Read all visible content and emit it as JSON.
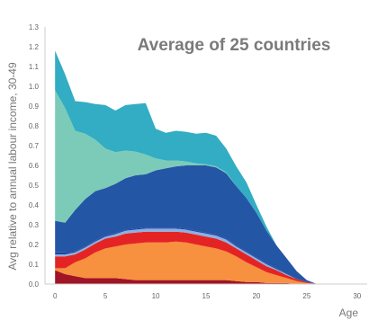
{
  "chart_data": {
    "type": "area",
    "stacked": true,
    "title": "Average of 25 countries",
    "xlabel": "Age",
    "ylabel": "Avg relative to annual labour income, 30-49",
    "xlim": [
      -1,
      31
    ],
    "ylim": [
      0,
      1.3
    ],
    "xticks": [
      0,
      5,
      10,
      15,
      20,
      25,
      30
    ],
    "yticks": [
      0.0,
      0.1,
      0.2,
      0.3,
      0.4,
      0.5,
      0.6,
      0.7,
      0.8,
      0.9,
      1.0,
      1.1,
      1.2,
      1.3
    ],
    "grid": false,
    "x": [
      0,
      1,
      2,
      3,
      4,
      5,
      6,
      7,
      8,
      9,
      10,
      11,
      12,
      13,
      14,
      15,
      16,
      17,
      18,
      19,
      20,
      21,
      22,
      23,
      24,
      25,
      26
    ],
    "series": [
      {
        "color": "#a01425",
        "values": [
          0.07,
          0.05,
          0.04,
          0.03,
          0.03,
          0.03,
          0.03,
          0.025,
          0.02,
          0.02,
          0.02,
          0.02,
          0.02,
          0.02,
          0.02,
          0.02,
          0.02,
          0.02,
          0.015,
          0.01,
          0.01,
          0.005,
          0.005,
          0.005,
          0.0,
          0.0,
          0.0
        ]
      },
      {
        "color": "#f7903f",
        "values": [
          0.01,
          0.03,
          0.07,
          0.1,
          0.13,
          0.15,
          0.16,
          0.175,
          0.185,
          0.19,
          0.19,
          0.19,
          0.195,
          0.19,
          0.18,
          0.17,
          0.16,
          0.145,
          0.125,
          0.1,
          0.075,
          0.055,
          0.04,
          0.025,
          0.015,
          0.005,
          0.0
        ]
      },
      {
        "color": "#e42424",
        "values": [
          0.06,
          0.06,
          0.04,
          0.045,
          0.045,
          0.05,
          0.05,
          0.055,
          0.055,
          0.055,
          0.055,
          0.055,
          0.05,
          0.05,
          0.05,
          0.05,
          0.05,
          0.045,
          0.04,
          0.04,
          0.035,
          0.03,
          0.025,
          0.015,
          0.01,
          0.005,
          0.0
        ]
      },
      {
        "color": "#8ab2e2",
        "values": [
          0.01,
          0.01,
          0.01,
          0.01,
          0.01,
          0.01,
          0.012,
          0.015,
          0.015,
          0.015,
          0.015,
          0.015,
          0.015,
          0.015,
          0.015,
          0.015,
          0.015,
          0.015,
          0.01,
          0.01,
          0.01,
          0.01,
          0.005,
          0.005,
          0.0,
          0.0,
          0.0
        ]
      },
      {
        "color": "#223fa2",
        "values": [
          0.01,
          0.01,
          0.005,
          0.005,
          0.005,
          0.005,
          0.005,
          0.005,
          0.005,
          0.005,
          0.005,
          0.005,
          0.005,
          0.005,
          0.005,
          0.005,
          0.005,
          0.005,
          0.005,
          0.005,
          0.005,
          0.005,
          0.005,
          0.0,
          0.0,
          0.0,
          0.0
        ]
      },
      {
        "color": "#2456a6",
        "values": [
          0.16,
          0.15,
          0.21,
          0.24,
          0.25,
          0.24,
          0.25,
          0.26,
          0.27,
          0.27,
          0.29,
          0.3,
          0.31,
          0.32,
          0.33,
          0.34,
          0.34,
          0.33,
          0.3,
          0.27,
          0.225,
          0.165,
          0.115,
          0.08,
          0.04,
          0.01,
          0.0
        ]
      },
      {
        "color": "#7ccbb8",
        "values": [
          0.66,
          0.58,
          0.4,
          0.33,
          0.26,
          0.2,
          0.16,
          0.14,
          0.12,
          0.1,
          0.06,
          0.04,
          0.03,
          0.02,
          0.01,
          0.005,
          0.005,
          0.005,
          0.0,
          0.0,
          0.0,
          0.0,
          0.0,
          0.0,
          0.0,
          0.0,
          0.0
        ]
      },
      {
        "color": "#32adc3",
        "values": [
          0.2,
          0.17,
          0.15,
          0.16,
          0.18,
          0.22,
          0.21,
          0.23,
          0.24,
          0.26,
          0.15,
          0.14,
          0.15,
          0.15,
          0.15,
          0.16,
          0.155,
          0.12,
          0.1,
          0.08,
          0.04,
          0.02,
          0.0,
          0.0,
          0.0,
          0.0,
          0.0
        ]
      }
    ]
  }
}
